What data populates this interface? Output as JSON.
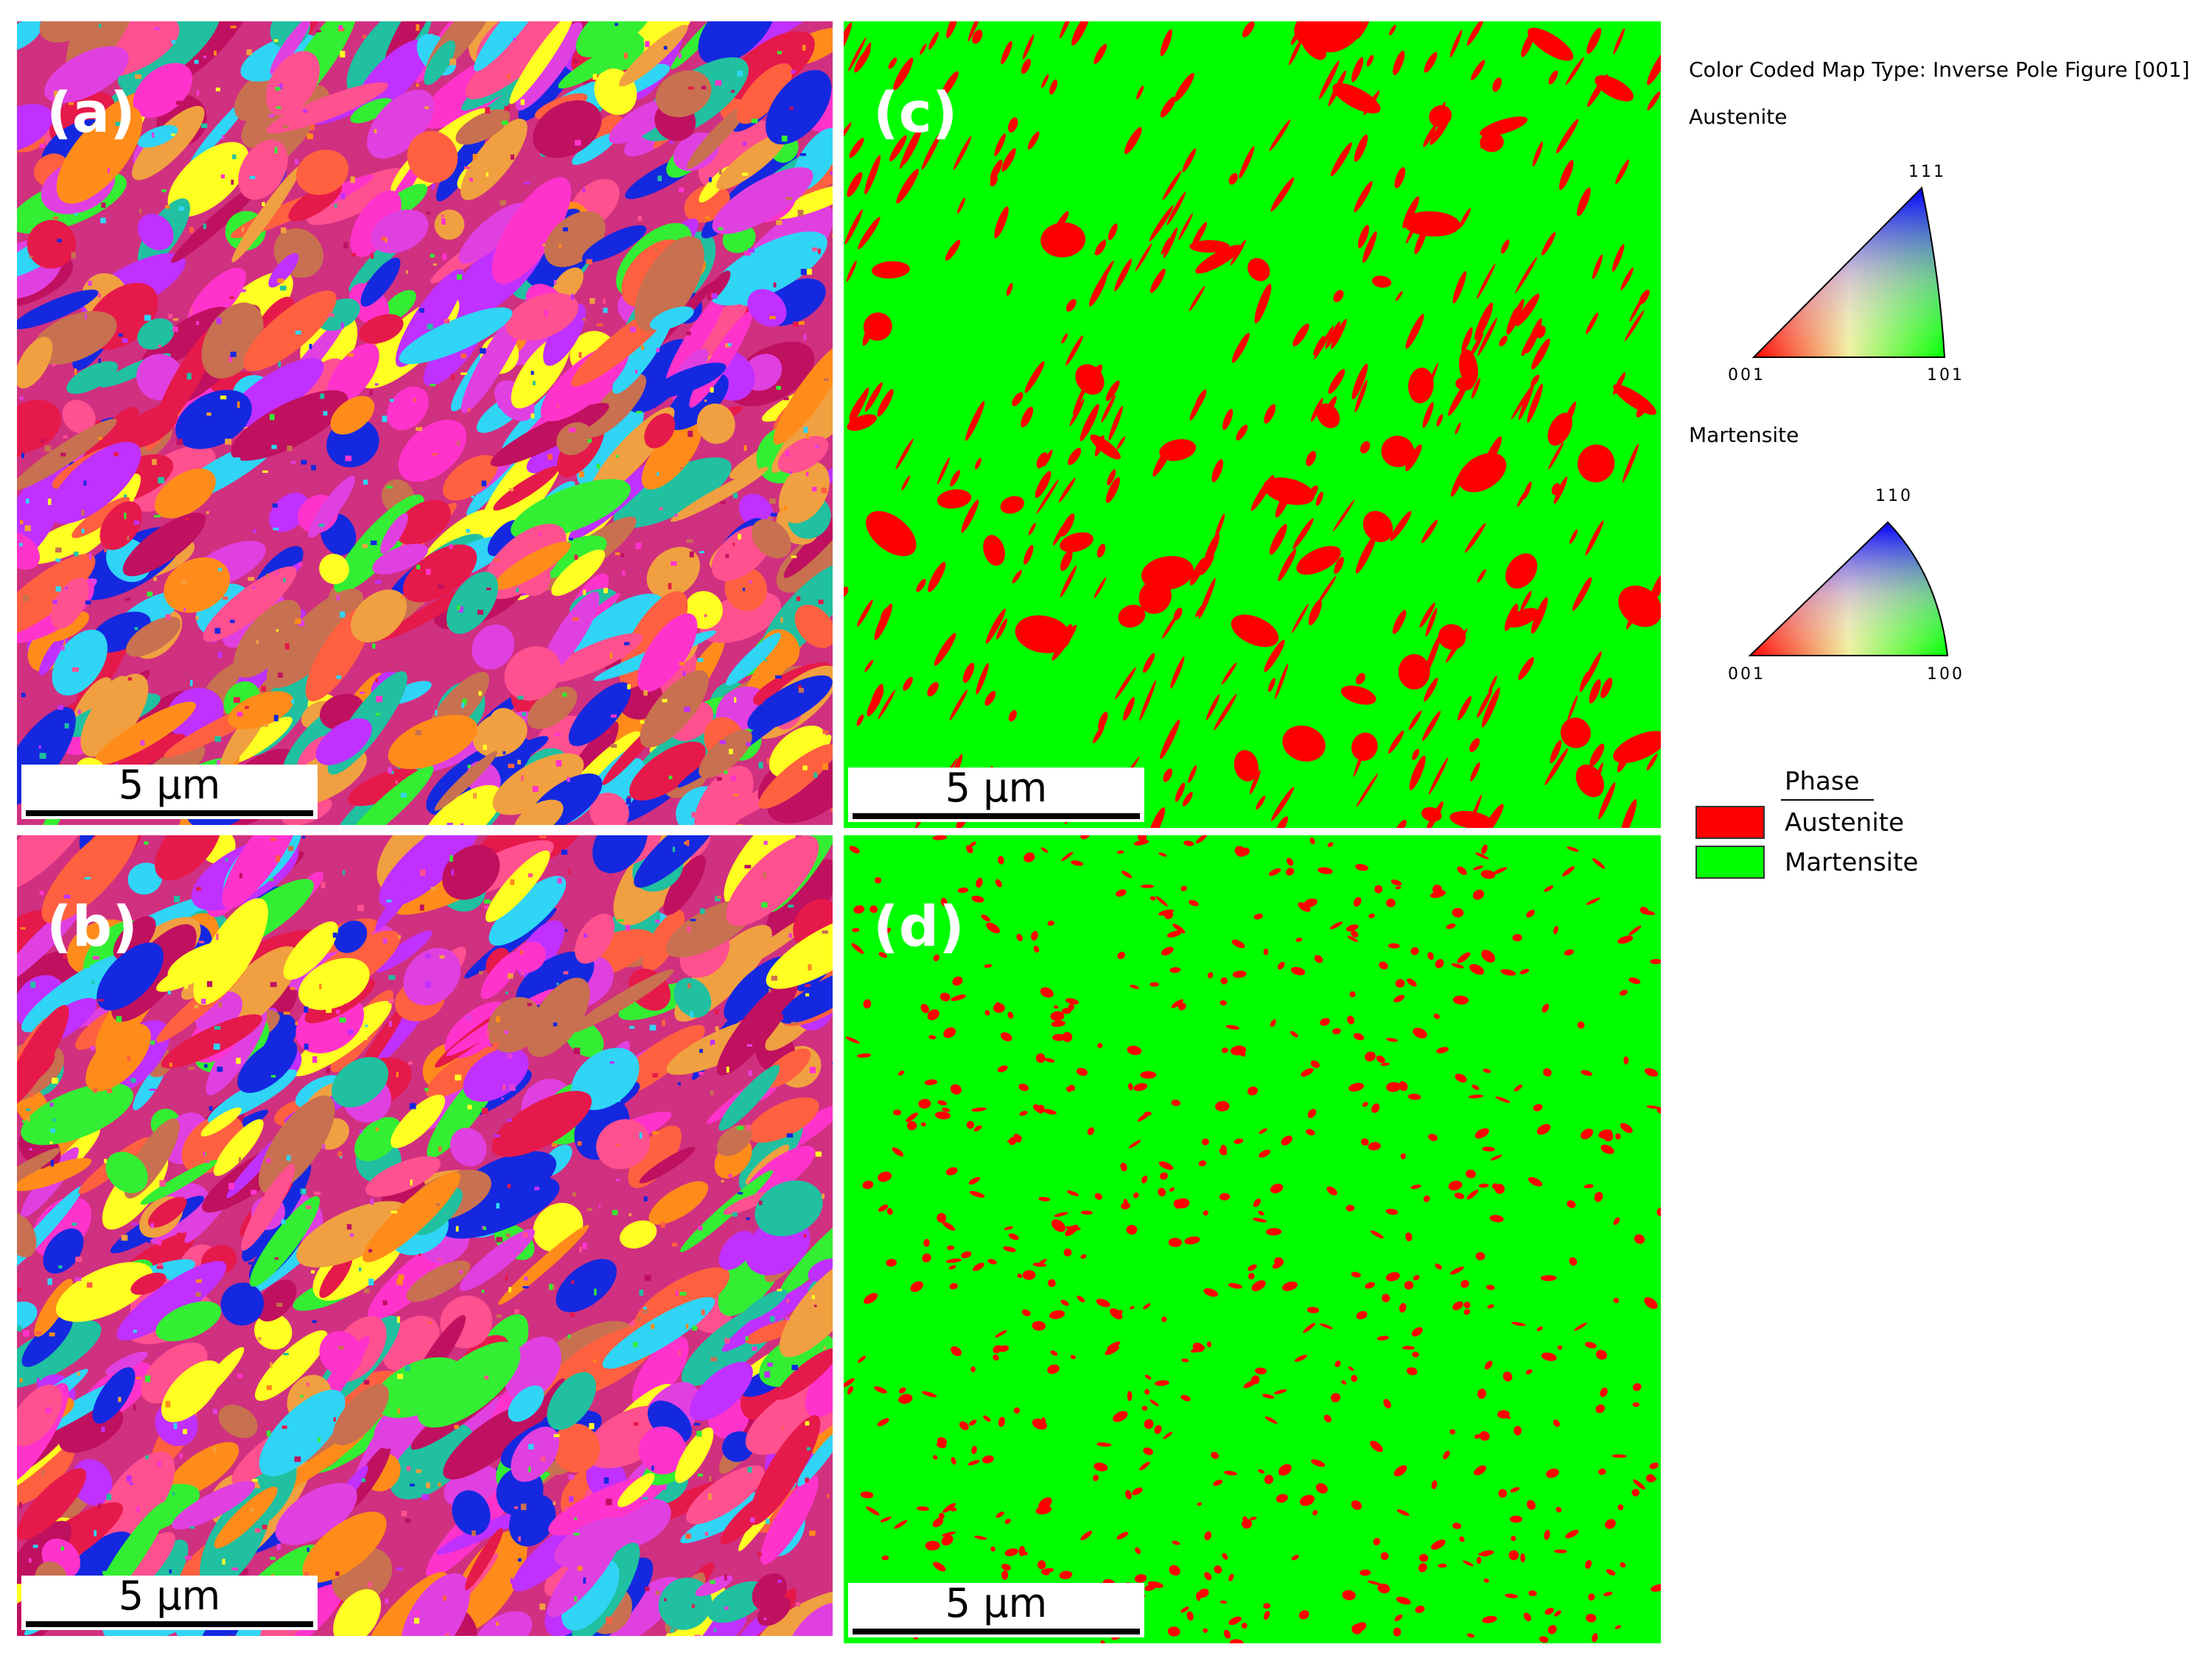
{
  "panels": [
    {
      "label": "(a)",
      "scale_bar": "5 µm"
    },
    {
      "label": "(b)",
      "scale_bar": "5 µm"
    },
    {
      "label": "(c)",
      "scale_bar": "5 µm"
    },
    {
      "label": "(d)",
      "scale_bar": "5 µm"
    }
  ],
  "legend": {
    "title": "Color Coded Map Type: Inverse Pole Figure [001]",
    "ipf": [
      {
        "phase": "Austenite",
        "corners": [
          "111",
          "001",
          "101"
        ]
      },
      {
        "phase": "Martensite",
        "corners": [
          "110",
          "001",
          "100"
        ]
      }
    ],
    "phase_map": {
      "title": "Phase",
      "entries": [
        {
          "name": "Austenite",
          "color": "#ff0000"
        },
        {
          "name": "Martensite",
          "color": "#00ff00"
        }
      ]
    }
  }
}
